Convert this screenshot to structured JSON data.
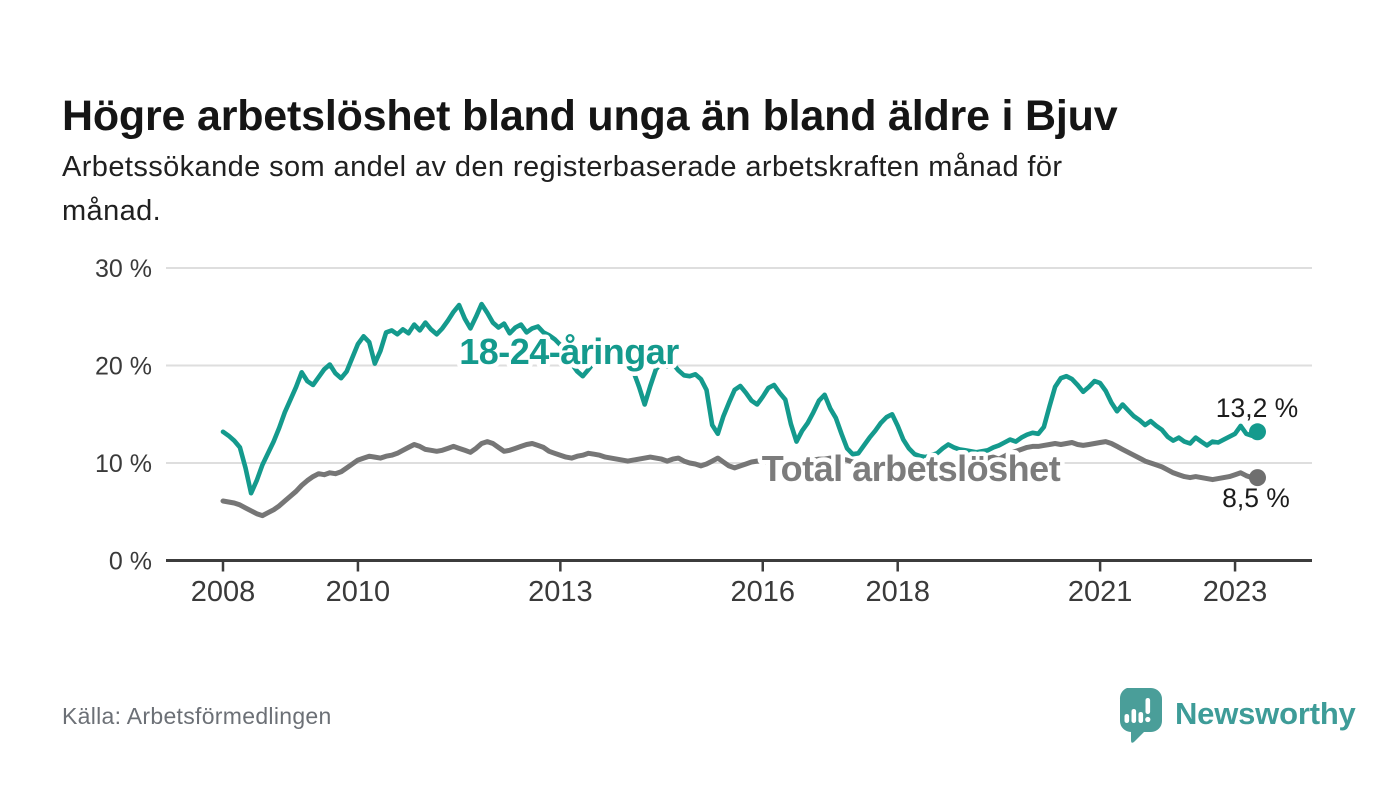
{
  "header": {
    "title": "Högre arbetslöshet bland unga än bland äldre i Bjuv",
    "subtitle": "Arbetssökande som andel av den registerbaserade arbetskraften månad för\nmånad."
  },
  "footer": {
    "source": "Källa: Arbetsförmedlingen",
    "brand": "Newsworthy"
  },
  "colors": {
    "youth_teal": "#149a8d",
    "total_gray": "#767676",
    "total_label_gray": "#7c7c7c",
    "gridline": "#dedede",
    "axis": "#3c3c3c",
    "tick_text": "#3a3a3a",
    "value_text": "#1c1c1c",
    "halo": "#ffffff",
    "brand_teal": "#3e9c98"
  },
  "chart_data": {
    "type": "line",
    "title": "Högre arbetslöshet bland unga än bland äldre i Bjuv",
    "subtitle": "Arbetssökande som andel av den registerbaserade arbetskraften månad för månad.",
    "xlabel": "",
    "ylabel": "",
    "x_unit": "monthly",
    "x_start": "2008-01",
    "x_end": "2023-05",
    "xlim": [
      2007.15,
      2024.15
    ],
    "ylim": [
      0,
      30
    ],
    "grid": true,
    "legend": "inline-labels",
    "y_ticks": [
      0,
      10,
      20,
      30
    ],
    "y_tick_labels": [
      "0 %",
      "10 %",
      "20 %",
      "30 %"
    ],
    "x_tick_years": [
      2008,
      2010,
      2013,
      2016,
      2018,
      2021,
      2023
    ],
    "x_tick_labels": [
      "2008",
      "2010",
      "2013",
      "2016",
      "2018",
      "2021",
      "2023"
    ],
    "series": [
      {
        "name": "Total arbetslöshet",
        "color": "#767676",
        "label_color": "#7c7c7c",
        "end_value": 8.5,
        "end_label": "8,5 %",
        "values": [
          6.1,
          6.0,
          5.9,
          5.7,
          5.4,
          5.1,
          4.8,
          4.6,
          4.9,
          5.2,
          5.6,
          6.1,
          6.6,
          7.1,
          7.7,
          8.2,
          8.6,
          8.9,
          8.8,
          9.0,
          8.9,
          9.1,
          9.5,
          9.9,
          10.3,
          10.5,
          10.7,
          10.6,
          10.5,
          10.7,
          10.8,
          11.0,
          11.3,
          11.6,
          11.9,
          11.7,
          11.4,
          11.3,
          11.2,
          11.3,
          11.5,
          11.7,
          11.5,
          11.3,
          11.1,
          11.5,
          12.0,
          12.2,
          12.0,
          11.6,
          11.2,
          11.3,
          11.5,
          11.7,
          11.9,
          12.0,
          11.8,
          11.6,
          11.2,
          11.0,
          10.8,
          10.6,
          10.5,
          10.7,
          10.8,
          11.0,
          10.9,
          10.8,
          10.6,
          10.5,
          10.4,
          10.3,
          10.2,
          10.3,
          10.4,
          10.5,
          10.6,
          10.5,
          10.4,
          10.2,
          10.4,
          10.5,
          10.2,
          10.0,
          9.9,
          9.7,
          9.9,
          10.2,
          10.5,
          10.1,
          9.7,
          9.5,
          9.7,
          9.9,
          10.1,
          10.2,
          10.2,
          10.0,
          9.8,
          9.9,
          10.1,
          10.0,
          9.9,
          10.0,
          10.2,
          10.3,
          10.4,
          10.4,
          10.5,
          10.4,
          10.4,
          10.3,
          10.1,
          10.0,
          9.9,
          9.7,
          9.6,
          9.6,
          9.5,
          9.6,
          9.5,
          9.4,
          9.3,
          9.3,
          9.2,
          9.3,
          9.3,
          9.4,
          9.5,
          9.6,
          9.7,
          9.8,
          9.9,
          10.0,
          10.2,
          10.3,
          10.5,
          10.6,
          10.4,
          10.7,
          11.0,
          11.2,
          11.4,
          11.6,
          11.7,
          11.7,
          11.8,
          11.9,
          12.0,
          11.9,
          12.0,
          12.1,
          11.9,
          11.8,
          11.9,
          12.0,
          12.1,
          12.2,
          12.0,
          11.7,
          11.4,
          11.1,
          10.8,
          10.5,
          10.2,
          10.0,
          9.8,
          9.6,
          9.3,
          9.0,
          8.8,
          8.6,
          8.5,
          8.6,
          8.5,
          8.4,
          8.3,
          8.4,
          8.5,
          8.6,
          8.8,
          9.0,
          8.7,
          8.5,
          8.5
        ]
      },
      {
        "name": "18-24-åringar",
        "color": "#149a8d",
        "label_color": "#149a8d",
        "end_value": 13.2,
        "end_label": "13,2 %",
        "values": [
          13.2,
          12.8,
          12.3,
          11.6,
          9.5,
          6.9,
          8.2,
          9.8,
          11.0,
          12.2,
          13.6,
          15.2,
          16.5,
          17.8,
          19.3,
          18.4,
          18.0,
          18.8,
          19.6,
          20.1,
          19.2,
          18.7,
          19.4,
          20.8,
          22.2,
          23.0,
          22.4,
          20.2,
          21.5,
          23.4,
          23.6,
          23.2,
          23.7,
          23.3,
          24.2,
          23.6,
          24.4,
          23.7,
          23.2,
          23.8,
          24.6,
          25.5,
          26.2,
          24.8,
          23.8,
          25.0,
          26.3,
          25.4,
          24.4,
          23.9,
          24.3,
          23.3,
          23.9,
          24.2,
          23.4,
          23.8,
          24.0,
          23.4,
          23.1,
          22.7,
          22.1,
          21.2,
          20.2,
          19.4,
          18.9,
          19.6,
          20.3,
          20.7,
          20.4,
          20.1,
          20.6,
          20.3,
          19.8,
          19.4,
          17.8,
          16.0,
          17.9,
          19.6,
          20.3,
          19.9,
          20.2,
          19.5,
          19.0,
          18.9,
          19.1,
          18.6,
          17.5,
          13.9,
          13.0,
          14.8,
          16.2,
          17.5,
          17.9,
          17.2,
          16.4,
          16.0,
          16.8,
          17.7,
          18.0,
          17.2,
          16.5,
          14.0,
          12.2,
          13.3,
          14.1,
          15.2,
          16.4,
          17.0,
          15.6,
          14.6,
          13.0,
          11.5,
          10.9,
          11.0,
          11.8,
          12.6,
          13.3,
          14.1,
          14.7,
          15.0,
          13.8,
          12.4,
          11.5,
          10.9,
          10.7,
          10.6,
          10.8,
          11.0,
          11.5,
          11.9,
          11.6,
          11.4,
          11.3,
          11.2,
          11.1,
          11.2,
          11.3,
          11.6,
          11.8,
          12.1,
          12.4,
          12.2,
          12.6,
          12.9,
          13.1,
          13.0,
          13.7,
          15.8,
          17.8,
          18.7,
          18.9,
          18.6,
          18.0,
          17.3,
          17.8,
          18.4,
          18.2,
          17.4,
          16.2,
          15.3,
          16.0,
          15.4,
          14.8,
          14.4,
          13.9,
          14.3,
          13.8,
          13.4,
          12.7,
          12.3,
          12.6,
          12.2,
          12.0,
          12.6,
          12.2,
          11.8,
          12.2,
          12.1,
          12.4,
          12.7,
          13.0,
          13.8,
          13.0,
          12.8,
          13.2
        ]
      }
    ]
  }
}
